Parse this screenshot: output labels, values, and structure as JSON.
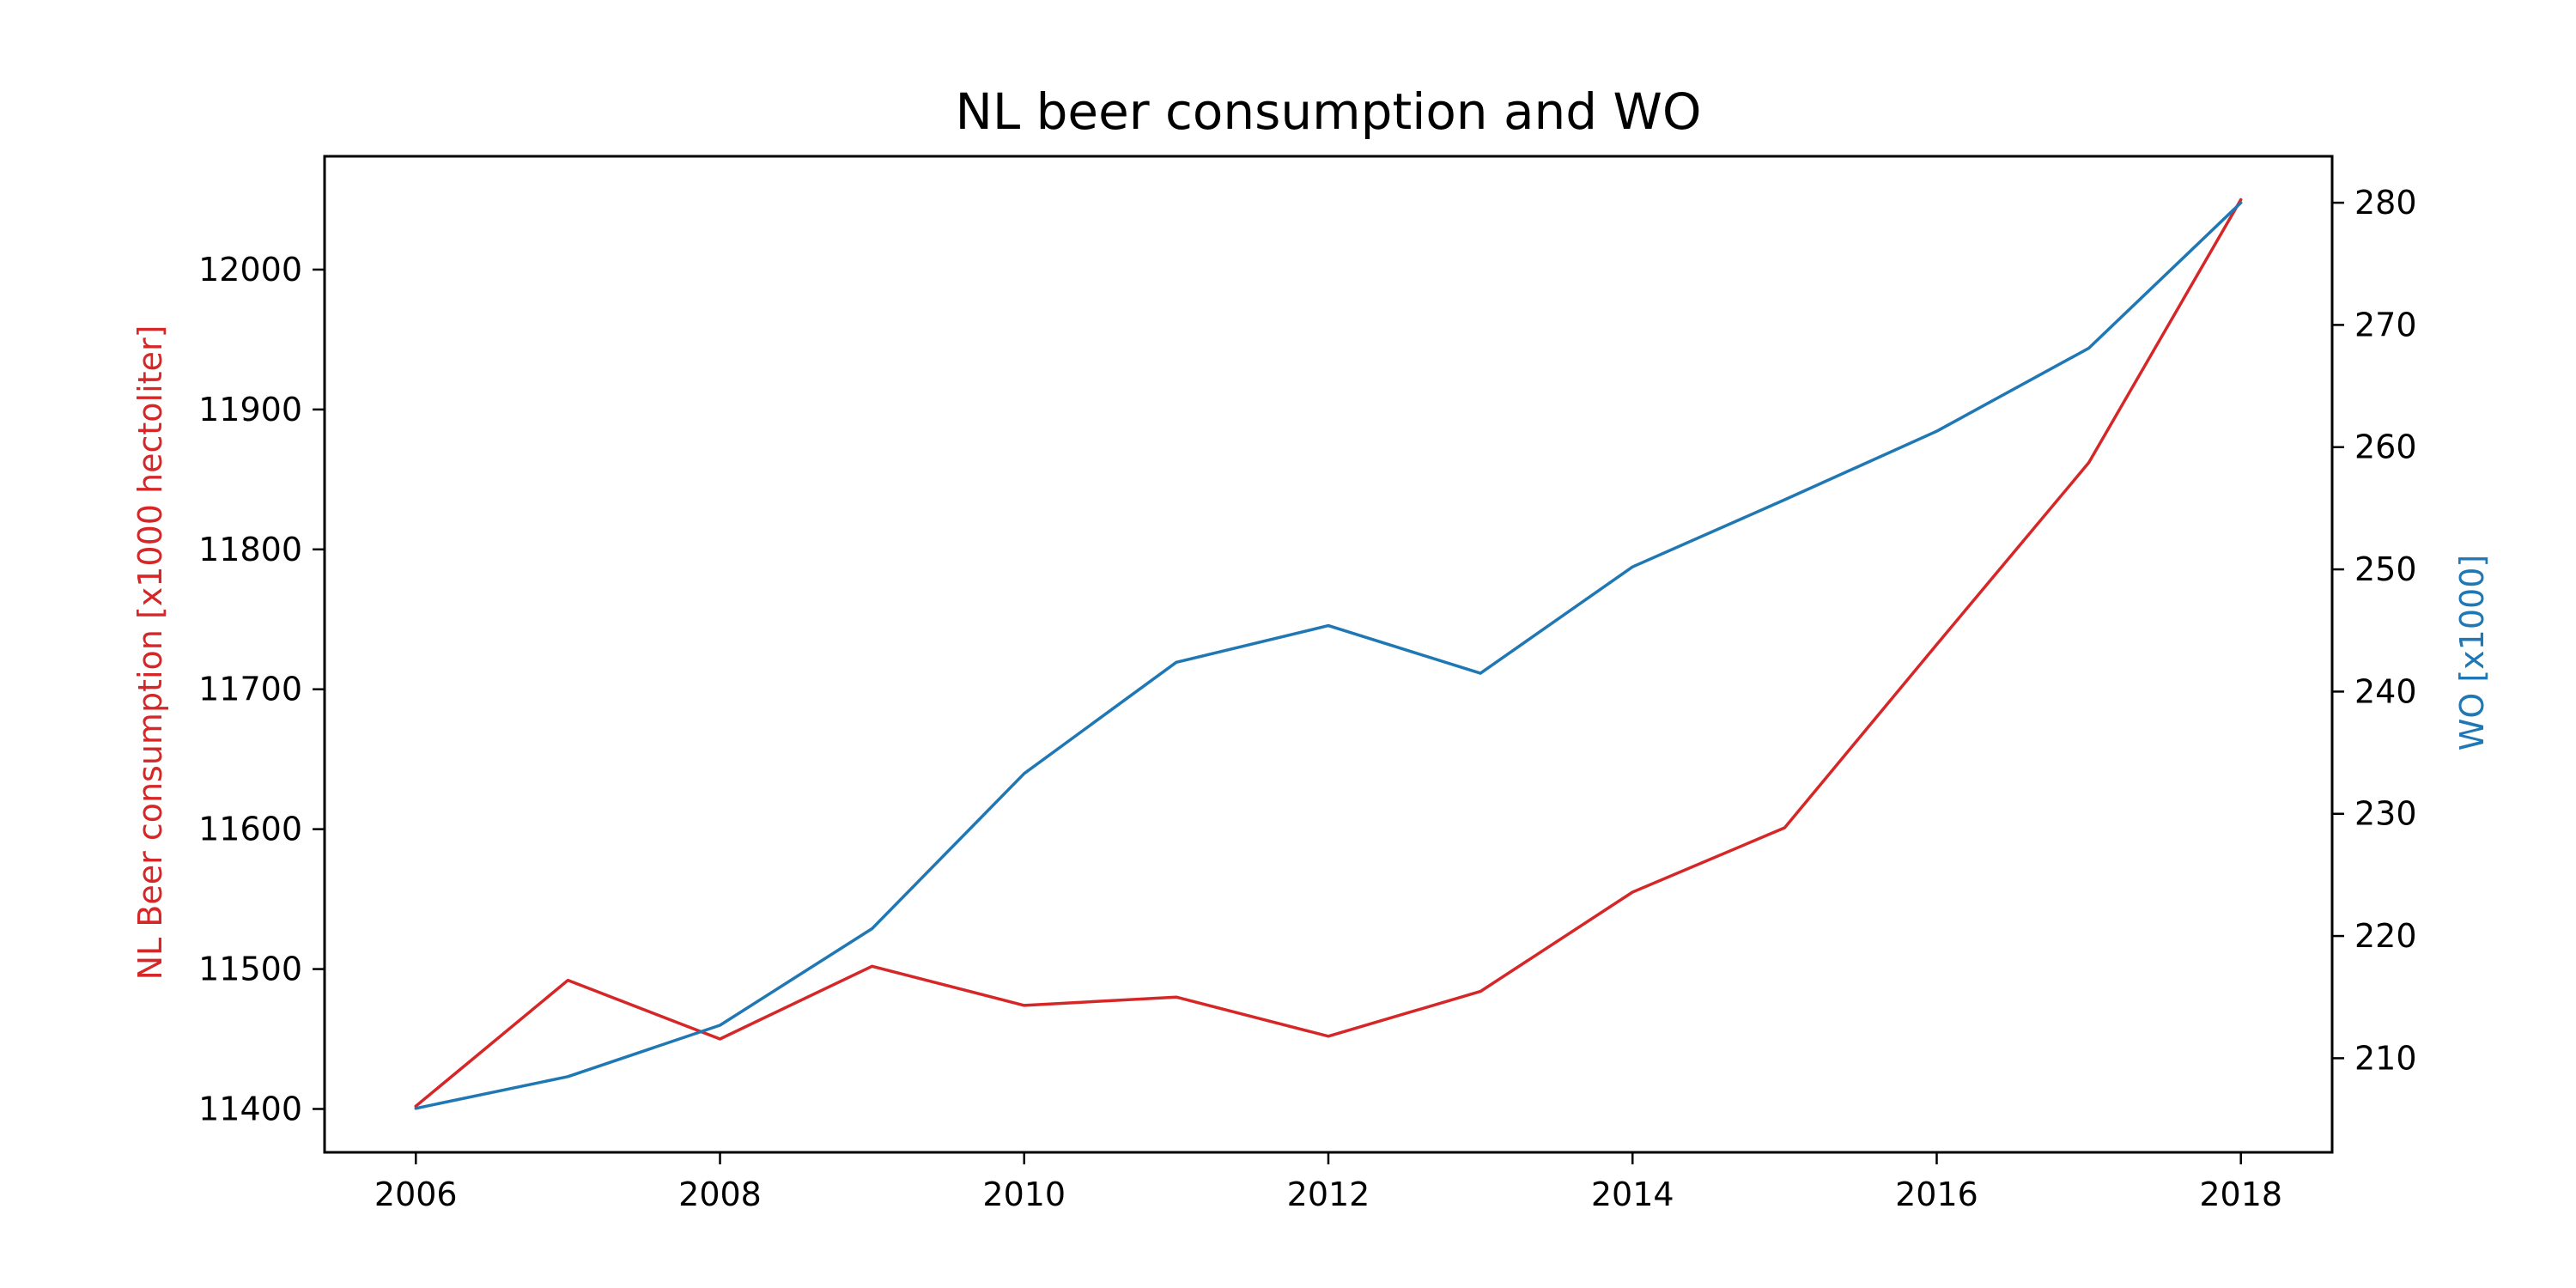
{
  "chart_data": {
    "type": "line",
    "title": "NL beer consumption and WO",
    "x": [
      2006,
      2007,
      2008,
      2009,
      2010,
      2011,
      2012,
      2013,
      2014,
      2015,
      2016,
      2017,
      2018
    ],
    "xlim": [
      2005.4,
      2018.6
    ],
    "xticks": [
      2006,
      2008,
      2010,
      2012,
      2014,
      2016,
      2018
    ],
    "xlabel": "",
    "y_left": {
      "label": "NL Beer consumption [x1000 hectoliter]",
      "color": "#d62728",
      "ylim": [
        11369,
        12081
      ],
      "ticks": [
        11400,
        11500,
        11600,
        11700,
        11800,
        11900,
        12000
      ]
    },
    "y_right": {
      "label": "WO [x1000]",
      "color": "#1f77b4",
      "ylim": [
        202.3,
        283.8
      ],
      "ticks": [
        210,
        220,
        230,
        240,
        250,
        260,
        270,
        280
      ]
    },
    "series": [
      {
        "axis": "left",
        "color": "#d62728",
        "values": [
          11402,
          11492,
          11450,
          11502,
          11474,
          11480,
          11452,
          11484,
          11555,
          11601,
          11732,
          11862,
          12050
        ]
      },
      {
        "axis": "right",
        "color": "#1f77b4",
        "values": [
          205.9,
          208.5,
          212.7,
          220.6,
          233.3,
          242.4,
          245.4,
          241.5,
          250.2,
          255.7,
          261.3,
          268.1,
          280.0
        ]
      }
    ],
    "grid": false,
    "legend": "none"
  }
}
